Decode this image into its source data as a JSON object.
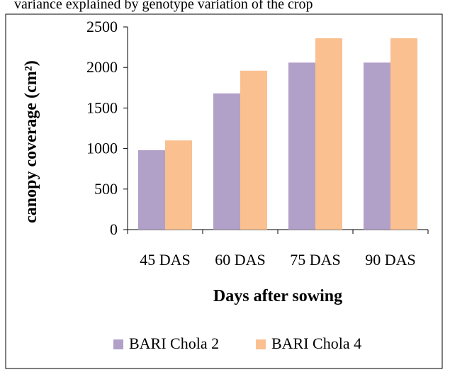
{
  "caption_fragment": "variance explained by genotype variation of the crop",
  "chart_data": {
    "type": "bar",
    "categories": [
      "45 DAS",
      "60 DAS",
      "75 DAS",
      "90 DAS"
    ],
    "series": [
      {
        "name": "BARI Chola 2",
        "values": [
          980,
          1680,
          2060,
          2060
        ],
        "color": "#b1a0c7"
      },
      {
        "name": "BARI Chola 4",
        "values": [
          1100,
          1960,
          2360,
          2360
        ],
        "color": "#fac090"
      }
    ],
    "xlabel": "Days after sowing",
    "ylabel": "canopy coverage (cm²)",
    "ylim": [
      0,
      2500
    ],
    "yticks": [
      0,
      500,
      1000,
      1500,
      2000,
      2500
    ],
    "grid": false,
    "legend_position": "bottom"
  }
}
